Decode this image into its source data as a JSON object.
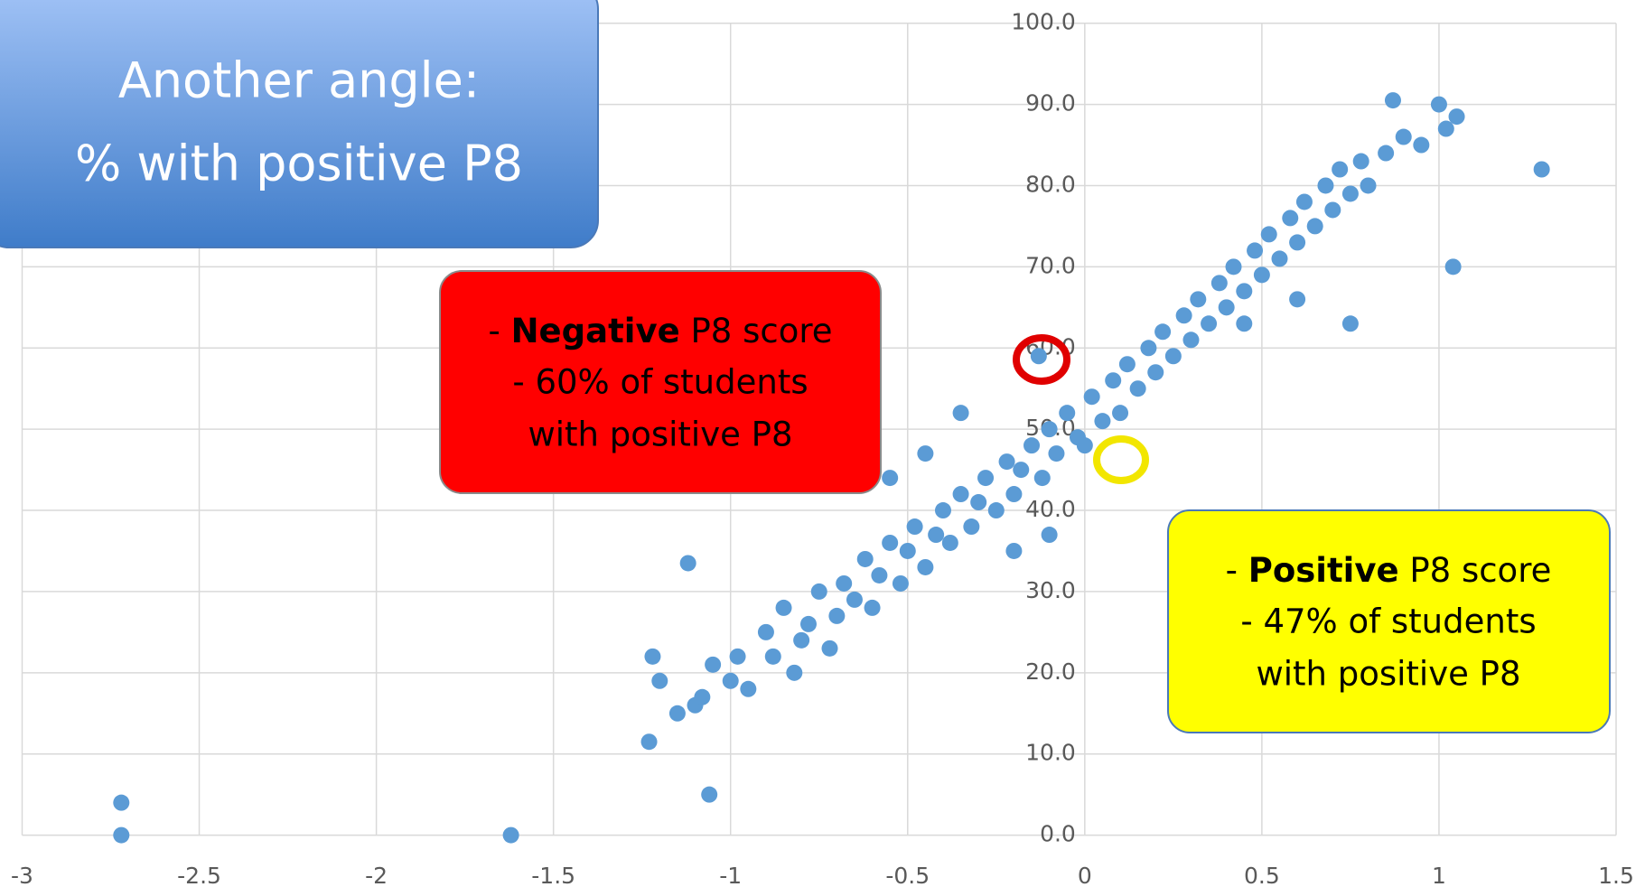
{
  "chart_data": {
    "type": "scatter",
    "title_box": {
      "line1": "Another angle:",
      "line2": "% with positive P8"
    },
    "annotations": [
      {
        "bullet": "-",
        "bold": "Negative",
        "rest": "P8 score",
        "line2": "- 60% of students",
        "line3": "with positive P8"
      },
      {
        "bullet": "-",
        "bold": "Positive",
        "rest": "P8 score",
        "line2": "- 47% of students",
        "line3": "with positive P8"
      }
    ],
    "color": "#5b9bd5",
    "grid": true,
    "xlim": [
      -3,
      1.5
    ],
    "xticks": [
      -3,
      -2.5,
      -2,
      -1.5,
      -1,
      -0.5,
      0,
      0.5,
      1,
      1.5
    ],
    "ylim": [
      0,
      100
    ],
    "yticks": [
      {
        "value": 0,
        "label": "0.0"
      },
      {
        "value": 10,
        "label": "10.0"
      },
      {
        "value": 20,
        "label": "20.0"
      },
      {
        "value": 30,
        "label": "30.0"
      },
      {
        "value": 40,
        "label": "40.0"
      },
      {
        "value": 50,
        "label": "50.0"
      },
      {
        "value": 60,
        "label": "60.0"
      },
      {
        "value": 70,
        "label": "70.0"
      },
      {
        "value": 80,
        "label": "80.0"
      },
      {
        "value": 90,
        "label": "90.0"
      },
      {
        "value": 100,
        "label": "100.0"
      }
    ],
    "x": [
      -2.72,
      -2.72,
      -1.62,
      -1.06,
      -1.23,
      -1.12,
      1.29,
      1.04,
      0.75,
      0.87,
      1.0,
      1.05,
      -0.1,
      -0.2,
      -1.22,
      -1.2,
      -1.15,
      -1.1,
      -1.08,
      -1.05,
      -1.0,
      -0.98,
      -0.95,
      -0.9,
      -0.88,
      -0.85,
      -0.82,
      -0.8,
      -0.78,
      -0.75,
      -0.72,
      -0.7,
      -0.68,
      -0.65,
      -0.62,
      -0.6,
      -0.58,
      -0.55,
      -0.52,
      -0.5,
      -0.48,
      -0.45,
      -0.42,
      -0.4,
      -0.38,
      -0.35,
      -0.32,
      -0.3,
      -0.28,
      -0.25,
      -0.22,
      -0.2,
      -0.18,
      -0.15,
      -0.12,
      -0.1,
      -0.08,
      -0.05,
      -0.02,
      0,
      0.02,
      0.05,
      0.08,
      0.1,
      0.12,
      0.15,
      0.18,
      0.2,
      0.22,
      0.25,
      0.28,
      0.3,
      0.32,
      0.35,
      0.38,
      0.4,
      0.42,
      0.45,
      0.48,
      0.5,
      0.52,
      0.55,
      0.58,
      0.6,
      0.62,
      0.65,
      0.68,
      0.7,
      0.72,
      0.75,
      0.78,
      0.8,
      0.85,
      0.9,
      0.95,
      1.02,
      -0.13,
      -0.35,
      -0.45,
      -0.55,
      0.45,
      0.6
    ],
    "values": [
      4,
      0,
      0,
      5,
      11.5,
      33.5,
      82,
      70,
      63,
      90.5,
      90,
      88.5,
      37,
      35,
      22,
      19,
      15,
      16,
      17,
      21,
      19,
      22,
      18,
      25,
      22,
      28,
      20,
      24,
      26,
      30,
      23,
      27,
      31,
      29,
      34,
      28,
      32,
      36,
      31,
      35,
      38,
      33,
      37,
      40,
      36,
      42,
      38,
      41,
      44,
      40,
      46,
      42,
      45,
      48,
      44,
      50,
      47,
      52,
      49,
      48,
      54,
      51,
      56,
      52,
      58,
      55,
      60,
      57,
      62,
      59,
      64,
      61,
      66,
      63,
      68,
      65,
      70,
      67,
      72,
      69,
      74,
      71,
      76,
      73,
      78,
      75,
      80,
      77,
      82,
      79,
      83,
      80,
      84,
      86,
      85,
      87,
      59,
      52,
      47,
      44,
      63,
      66
    ]
  }
}
